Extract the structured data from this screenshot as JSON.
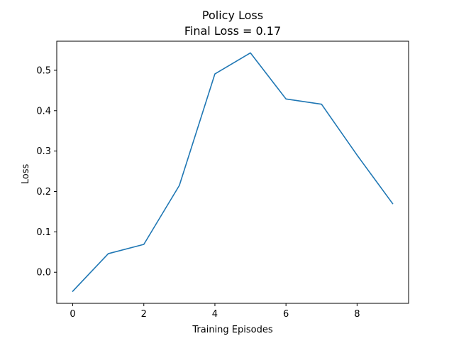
{
  "chart_data": {
    "type": "line",
    "title": "Policy Loss",
    "subtitle": "Final Loss = 0.17",
    "xlabel": "Training Episodes",
    "ylabel": "Loss",
    "x": [
      0,
      1,
      2,
      3,
      4,
      5,
      6,
      7,
      8,
      9
    ],
    "series": [
      {
        "values": [
          -0.047,
          0.046,
          0.069,
          0.215,
          0.491,
          0.543,
          0.429,
          0.416,
          0.29,
          0.17
        ]
      }
    ],
    "xlim": [
      -0.45,
      9.45
    ],
    "ylim": [
      -0.077,
      0.572
    ],
    "x_ticks": [
      0,
      2,
      4,
      6,
      8
    ],
    "y_ticks": [
      0.0,
      0.1,
      0.2,
      0.3,
      0.4,
      0.5
    ],
    "x_tick_labels": [
      "0",
      "2",
      "4",
      "6",
      "8"
    ],
    "y_tick_labels": [
      "0.0",
      "0.1",
      "0.2",
      "0.3",
      "0.4",
      "0.5"
    ],
    "grid": false,
    "legend": false,
    "line_color": "#1f77b4"
  }
}
